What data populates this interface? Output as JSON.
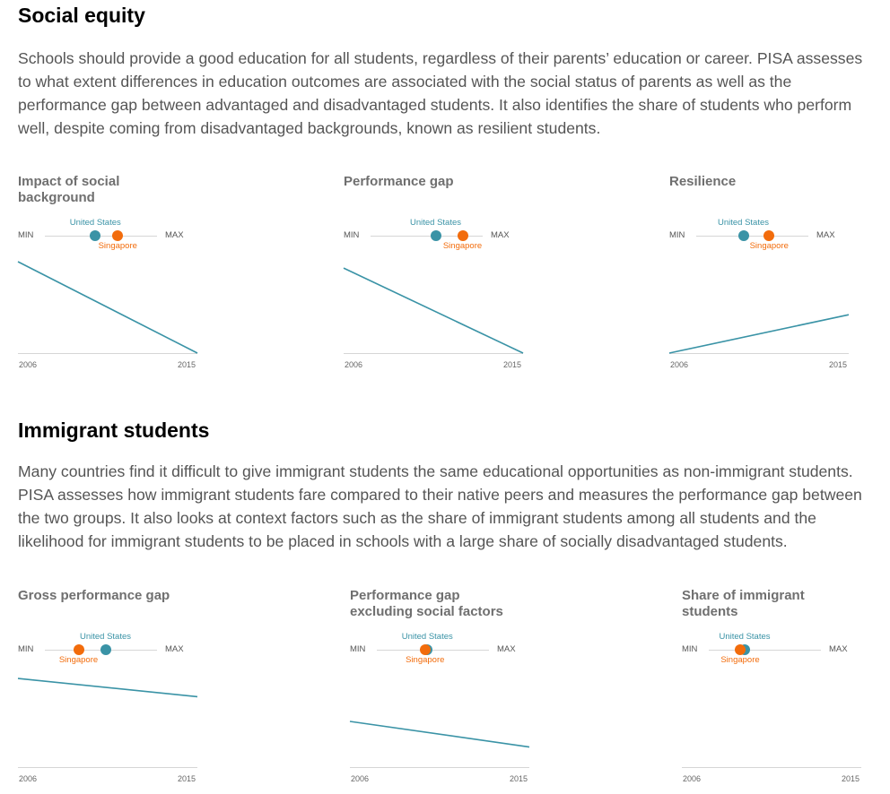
{
  "colors": {
    "us": "#3a93a6",
    "sg": "#f26c0c",
    "axis": "#d6d6d6"
  },
  "sections": [
    {
      "title": "Social equity",
      "description": "Schools should provide a good education for all students, regardless of their parents’ education or career. PISA assesses to what extent differences in education outcomes are associated with the social status of parents as well as the performance gap between advantaged and disadvantaged students. It also identifies the share of students who perform well, despite coming from disadvantaged backgrounds, known as resilient students."
    },
    {
      "title": "Immigrant students",
      "description": "Many countries find it difficult to give immigrant students the same educational opportunities as non-immigrant students. PISA assesses how immigrant students fare compared to their native peers and measures the performance gap between the two groups. It also looks at context factors such as the share of immigrant students among all students and the likelihood for immigrant students to be placed in schools with a large share of socially disadvantaged students."
    }
  ],
  "chart_data": [
    {
      "type": "line",
      "title": "Impact of social\nbackground",
      "min_label": "MIN",
      "max_label": "MAX",
      "scale": {
        "us_label": "United States",
        "sg_label": "Singapore",
        "us": 0.45,
        "sg": 0.65
      },
      "x": [
        "2006",
        "2015"
      ],
      "series": [
        {
          "values": [
            1.0,
            0.0
          ]
        }
      ]
    },
    {
      "type": "line",
      "title": "Performance gap",
      "min_label": "MIN",
      "max_label": "MAX",
      "scale": {
        "us_label": "United States",
        "sg_label": "Singapore",
        "us": 0.58,
        "sg": 0.82
      },
      "x": [
        "2006",
        "2015"
      ],
      "series": [
        {
          "values": [
            0.93,
            0.0
          ]
        }
      ]
    },
    {
      "type": "line",
      "title": "Resilience",
      "min_label": "MIN",
      "max_label": "MAX",
      "scale": {
        "us_label": "United States",
        "sg_label": "Singapore",
        "us": 0.42,
        "sg": 0.65
      },
      "x": [
        "2006",
        "2015"
      ],
      "series": [
        {
          "values": [
            0.0,
            0.42
          ]
        }
      ]
    },
    {
      "type": "line",
      "title": "Gross performance gap",
      "min_label": "MIN",
      "max_label": "MAX",
      "scale": {
        "us_label": "United States",
        "sg_label": "Singapore",
        "us": 0.54,
        "sg": 0.3
      },
      "x": [
        "2006",
        "2015"
      ],
      "series": [
        {
          "values": [
            0.97,
            0.77
          ]
        }
      ]
    },
    {
      "type": "line",
      "title": "Performance gap\nexcluding social factors",
      "min_label": "MIN",
      "max_label": "MAX",
      "scale": {
        "us_label": "United States",
        "sg_label": "Singapore",
        "us": 0.45,
        "sg": 0.43
      },
      "x": [
        "2006",
        "2015"
      ],
      "series": [
        {
          "values": [
            0.5,
            0.22
          ]
        }
      ]
    },
    {
      "type": "line",
      "title": "Share of immigrant\nstudents",
      "min_label": "MIN",
      "max_label": "MAX",
      "scale": {
        "us_label": "United States",
        "sg_label": "Singapore",
        "us": 0.32,
        "sg": 0.28
      },
      "x": [
        "2006",
        "2015"
      ],
      "series": [
        {
          "values": [
            null,
            null
          ]
        }
      ]
    }
  ]
}
